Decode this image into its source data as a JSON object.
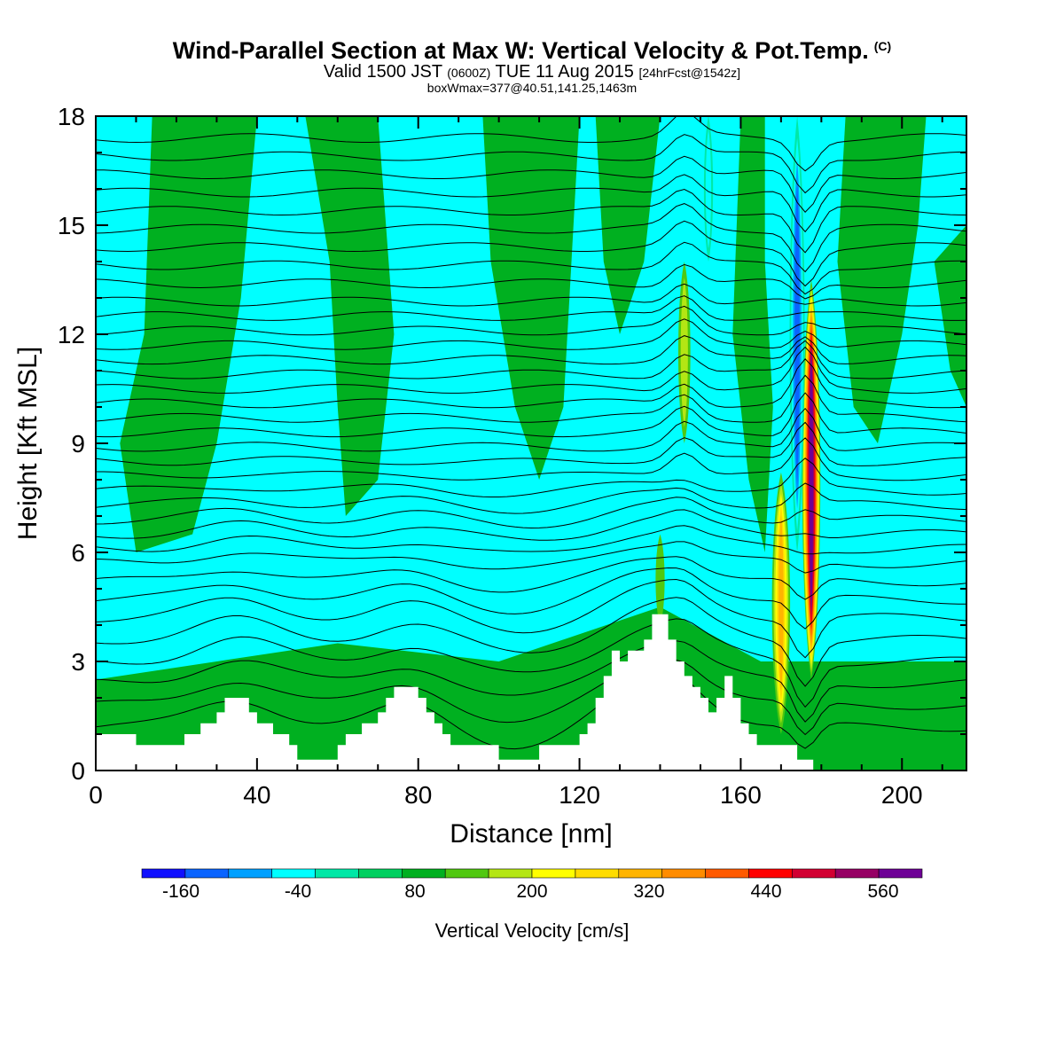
{
  "title": {
    "main": "Wind-Parallel Section at Max W: Vertical Velocity & Pot.Temp.",
    "copyright": "(C)",
    "valid_prefix": "Valid 1500 JST ",
    "valid_utc": "(0600Z)",
    "valid_date": " TUE 11 Aug 2015 ",
    "forecast": "[24hrFcst@1542z]",
    "box_info": "boxWmax=377@40.51,141.25,1463m"
  },
  "chart_data": {
    "type": "heatmap",
    "xlabel": "Distance [nm]",
    "ylabel": "Height [Kft MSL]",
    "xlim": [
      0,
      216
    ],
    "ylim": [
      0,
      18
    ],
    "x_ticks": [
      "0",
      "40",
      "80",
      "120",
      "160",
      "200"
    ],
    "y_ticks": [
      "0",
      "3",
      "6",
      "9",
      "12",
      "15",
      "18"
    ],
    "background_fill": "#00ffff",
    "colorbar": {
      "title": "Vertical Velocity [cm/s]",
      "labels": [
        "-160",
        "-40",
        "80",
        "200",
        "320",
        "440",
        "560"
      ],
      "levels": [
        -200,
        -160,
        -120,
        -80,
        -40,
        0,
        40,
        80,
        120,
        160,
        200,
        240,
        280,
        320,
        360,
        400,
        440,
        480,
        520,
        560,
        600
      ],
      "colors": [
        "#1010ff",
        "#0a64ff",
        "#00a0ff",
        "#00ffff",
        "#00e8a6",
        "#00d060",
        "#00b020",
        "#50c810",
        "#b4e614",
        "#ffff00",
        "#ffdc00",
        "#ffb400",
        "#ff8c00",
        "#ff5a00",
        "#ff0000",
        "#d20032",
        "#960064",
        "#6e0096"
      ]
    },
    "terrain_kft": [
      [
        0,
        1.0
      ],
      [
        10,
        1.0
      ],
      [
        10,
        0.7
      ],
      [
        22,
        0.7
      ],
      [
        22,
        1.0
      ],
      [
        26,
        1.0
      ],
      [
        26,
        1.3
      ],
      [
        30,
        1.3
      ],
      [
        30,
        1.6
      ],
      [
        32,
        1.6
      ],
      [
        32,
        2.0
      ],
      [
        38,
        2.0
      ],
      [
        38,
        1.6
      ],
      [
        40,
        1.6
      ],
      [
        40,
        1.3
      ],
      [
        44,
        1.3
      ],
      [
        44,
        1.0
      ],
      [
        48,
        1.0
      ],
      [
        48,
        0.7
      ],
      [
        50,
        0.7
      ],
      [
        50,
        0.3
      ],
      [
        60,
        0.3
      ],
      [
        60,
        0.7
      ],
      [
        62,
        0.7
      ],
      [
        62,
        1.0
      ],
      [
        66,
        1.0
      ],
      [
        66,
        1.3
      ],
      [
        70,
        1.3
      ],
      [
        70,
        1.6
      ],
      [
        72,
        1.6
      ],
      [
        72,
        2.0
      ],
      [
        74,
        2.0
      ],
      [
        74,
        2.3
      ],
      [
        80,
        2.3
      ],
      [
        80,
        2.0
      ],
      [
        82,
        2.0
      ],
      [
        82,
        1.6
      ],
      [
        84,
        1.6
      ],
      [
        84,
        1.3
      ],
      [
        86,
        1.3
      ],
      [
        86,
        1.0
      ],
      [
        88,
        1.0
      ],
      [
        88,
        0.7
      ],
      [
        100,
        0.7
      ],
      [
        100,
        0.3
      ],
      [
        110,
        0.3
      ],
      [
        110,
        0.7
      ],
      [
        120,
        0.7
      ],
      [
        120,
        1.0
      ],
      [
        122,
        1.0
      ],
      [
        122,
        1.3
      ],
      [
        124,
        1.3
      ],
      [
        124,
        2.0
      ],
      [
        126,
        2.0
      ],
      [
        126,
        2.6
      ],
      [
        128,
        2.6
      ],
      [
        128,
        3.3
      ],
      [
        130,
        3.3
      ],
      [
        130,
        3.0
      ],
      [
        132,
        3.0
      ],
      [
        132,
        3.3
      ],
      [
        136,
        3.3
      ],
      [
        136,
        3.6
      ],
      [
        138,
        3.6
      ],
      [
        138,
        4.3
      ],
      [
        142,
        4.3
      ],
      [
        142,
        3.6
      ],
      [
        144,
        3.6
      ],
      [
        144,
        3.0
      ],
      [
        146,
        3.0
      ],
      [
        146,
        2.6
      ],
      [
        148,
        2.6
      ],
      [
        148,
        2.3
      ],
      [
        150,
        2.3
      ],
      [
        150,
        2.0
      ],
      [
        152,
        2.0
      ],
      [
        152,
        1.6
      ],
      [
        154,
        1.6
      ],
      [
        154,
        2.0
      ],
      [
        156,
        2.0
      ],
      [
        156,
        2.6
      ],
      [
        158,
        2.6
      ],
      [
        158,
        2.0
      ],
      [
        160,
        2.0
      ],
      [
        160,
        1.3
      ],
      [
        162,
        1.3
      ],
      [
        162,
        1.0
      ],
      [
        164,
        1.0
      ],
      [
        164,
        0.7
      ],
      [
        174,
        0.7
      ],
      [
        174,
        0.3
      ],
      [
        178,
        0.3
      ],
      [
        178,
        0.0
      ],
      [
        216,
        0.0
      ]
    ],
    "velocity_features": [
      {
        "x": 170.0,
        "y_bottom": 1.0,
        "y_top": 8.2,
        "half_width_nm": 3.0,
        "levels": [
          80,
          120,
          160,
          200,
          240
        ]
      },
      {
        "x": 177.5,
        "y_bottom": 2.5,
        "y_top": 13.5,
        "half_width_nm": 3.0,
        "levels": [
          80,
          120,
          160,
          200,
          240,
          280,
          320,
          360,
          400,
          440,
          480,
          520
        ]
      },
      {
        "x": 146.0,
        "y_bottom": 9.0,
        "y_top": 14.0,
        "half_width_nm": 2.0,
        "levels": [
          80,
          120
        ]
      },
      {
        "x": 140.0,
        "y_bottom": 4.0,
        "y_top": 6.5,
        "half_width_nm": 1.5,
        "levels": [
          80
        ]
      },
      {
        "x": 174.0,
        "y_bottom": 6.0,
        "y_top": 18.0,
        "half_width_nm": 2.5,
        "levels": [
          -40,
          -80,
          -120,
          -160
        ]
      },
      {
        "x": 152.0,
        "y_bottom": 14.0,
        "y_top": 18.0,
        "half_width_nm": 1.5,
        "levels": [
          -40,
          -80
        ]
      }
    ],
    "green_regions_nm_kft": [
      [
        [
          0,
          2.5
        ],
        [
          30,
          3.0
        ],
        [
          60,
          3.5
        ],
        [
          100,
          3.0
        ],
        [
          140,
          4.5
        ],
        [
          165,
          3.0
        ],
        [
          216,
          3.0
        ],
        [
          216,
          0
        ],
        [
          0,
          0
        ]
      ],
      [
        [
          14,
          18
        ],
        [
          12,
          12
        ],
        [
          6,
          9
        ],
        [
          10,
          6
        ],
        [
          24,
          6.5
        ],
        [
          30,
          9
        ],
        [
          36,
          13
        ],
        [
          40,
          18
        ]
      ],
      [
        [
          52,
          18
        ],
        [
          58,
          14
        ],
        [
          60,
          10
        ],
        [
          62,
          7
        ],
        [
          70,
          8
        ],
        [
          74,
          12
        ],
        [
          72,
          15
        ],
        [
          70,
          18
        ]
      ],
      [
        [
          96,
          18
        ],
        [
          98,
          14
        ],
        [
          104,
          10
        ],
        [
          110,
          8
        ],
        [
          116,
          10
        ],
        [
          118,
          14
        ],
        [
          120,
          18
        ]
      ],
      [
        [
          124,
          18
        ],
        [
          126,
          14
        ],
        [
          130,
          12
        ],
        [
          136,
          14
        ],
        [
          140,
          18
        ]
      ],
      [
        [
          160,
          18
        ],
        [
          158,
          12
        ],
        [
          162,
          8
        ],
        [
          166,
          6
        ],
        [
          168,
          10
        ],
        [
          166,
          14
        ],
        [
          166,
          18
        ]
      ],
      [
        [
          186,
          18
        ],
        [
          184,
          14
        ],
        [
          188,
          10
        ],
        [
          194,
          9
        ],
        [
          200,
          12
        ],
        [
          204,
          15
        ],
        [
          206,
          18
        ]
      ],
      [
        [
          208,
          14
        ],
        [
          212,
          11
        ],
        [
          216,
          10
        ],
        [
          216,
          15
        ]
      ]
    ],
    "theta_contours_kft": [
      1.2,
      1.8,
      2.4,
      3.0,
      3.6,
      4.2,
      4.7,
      5.2,
      5.7,
      6.1,
      6.5,
      6.9,
      7.3,
      7.7,
      8.1,
      8.5,
      8.9,
      9.3,
      9.7,
      10.1,
      10.5,
      10.9,
      11.3,
      11.7,
      12.1,
      12.5,
      12.9,
      13.4,
      13.9,
      14.4,
      14.9,
      15.4,
      15.9,
      16.4,
      16.9,
      17.4
    ]
  }
}
